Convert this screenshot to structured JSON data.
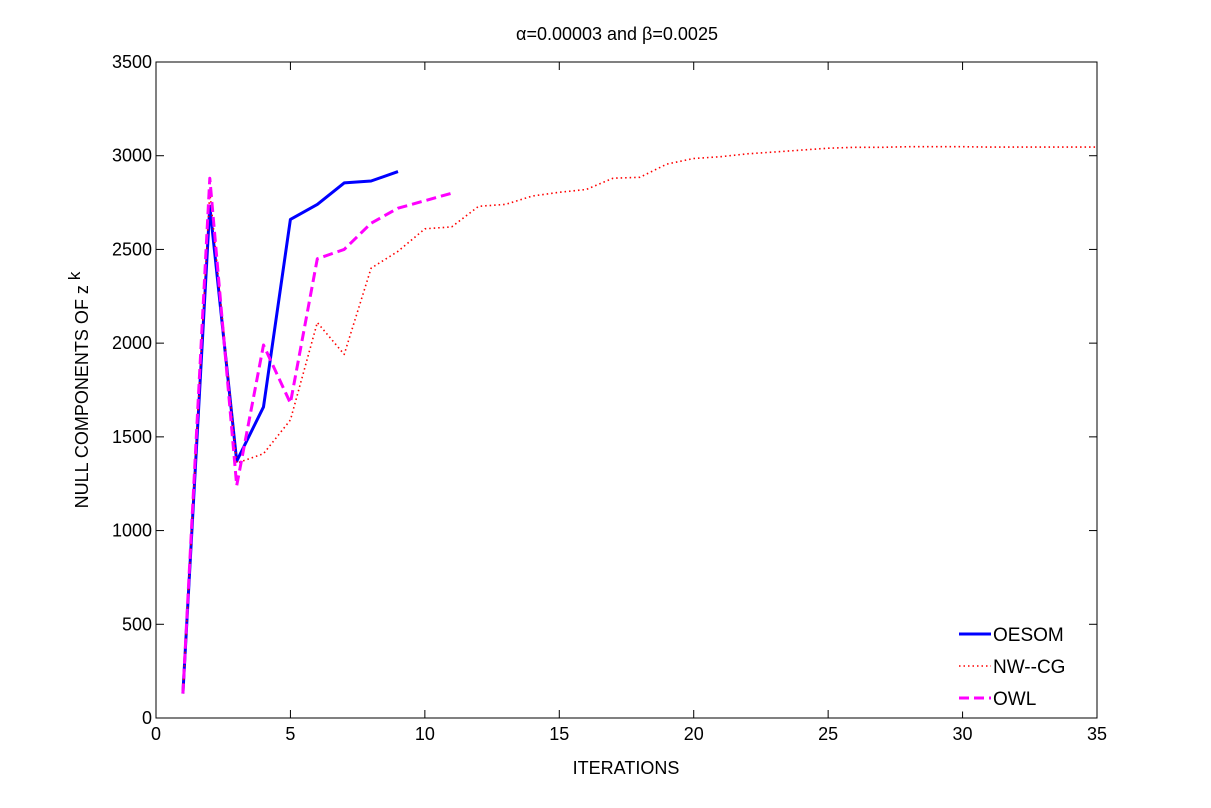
{
  "chart_data": {
    "type": "line",
    "title": "α=0.00003 and β=0.0025",
    "xlabel": "ITERATIONS",
    "ylabel_main": "NULL COMPONENTS OF z",
    "ylabel_sup": "k",
    "xlim": [
      0,
      35
    ],
    "ylim": [
      0,
      3500
    ],
    "xticks": [
      0,
      5,
      10,
      15,
      20,
      25,
      30,
      35
    ],
    "yticks": [
      0,
      500,
      1000,
      1500,
      2000,
      2500,
      3000,
      3500
    ],
    "grid": false,
    "legend_position": "bottom-right",
    "series": [
      {
        "name": "OESOM",
        "color": "#0000ff",
        "style": "solid",
        "x": [
          1,
          2,
          3,
          4,
          5,
          6,
          7,
          8,
          9
        ],
        "y": [
          130,
          2730,
          1370,
          1660,
          2660,
          2740,
          2855,
          2865,
          2915
        ]
      },
      {
        "name": "NW--CG",
        "color": "#ff0000",
        "style": "dotted",
        "x": [
          1,
          2,
          3,
          4,
          5,
          6,
          7,
          8,
          9,
          10,
          11,
          12,
          13,
          14,
          15,
          16,
          17,
          18,
          19,
          20,
          21,
          22,
          23,
          24,
          25,
          26,
          27,
          28,
          29,
          30,
          31,
          32,
          33,
          34,
          35
        ],
        "y": [
          130,
          2810,
          1360,
          1410,
          1590,
          2110,
          1940,
          2400,
          2490,
          2610,
          2620,
          2730,
          2740,
          2785,
          2805,
          2820,
          2880,
          2885,
          2955,
          2985,
          2995,
          3010,
          3020,
          3030,
          3040,
          3045,
          3045,
          3048,
          3048,
          3048,
          3046,
          3046,
          3046,
          3046,
          3046
        ]
      },
      {
        "name": "OWL",
        "color": "#ff00ff",
        "style": "dashed",
        "x": [
          1,
          2,
          3,
          4,
          5,
          6,
          7,
          8,
          9,
          10,
          11
        ],
        "y": [
          130,
          2880,
          1240,
          1990,
          1680,
          2450,
          2500,
          2640,
          2720,
          2760,
          2800
        ]
      }
    ]
  }
}
